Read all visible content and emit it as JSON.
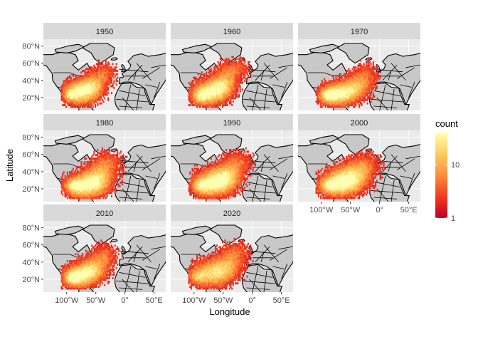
{
  "chart_data": {
    "type": "heatmap",
    "facets": [
      "1950",
      "1960",
      "1970",
      "1980",
      "1990",
      "2000",
      "2010",
      "2020"
    ],
    "xlabel": "Longitude",
    "ylabel": "Latitude",
    "x_ticks": [
      {
        "value": -100,
        "label": "100°W"
      },
      {
        "value": -50,
        "label": "50°W"
      },
      {
        "value": 0,
        "label": "0°"
      },
      {
        "value": 50,
        "label": "50°E"
      }
    ],
    "y_ticks": [
      {
        "value": 20,
        "label": "20°N"
      },
      {
        "value": 40,
        "label": "40°N"
      },
      {
        "value": 60,
        "label": "60°N"
      },
      {
        "value": 80,
        "label": "80°N"
      }
    ],
    "xlim": [
      -140,
      70
    ],
    "ylim": [
      5,
      88
    ],
    "legend": {
      "title": "count",
      "scale": "log",
      "breaks": [
        {
          "value": 1,
          "label": "1"
        },
        {
          "value": 10,
          "label": "10"
        }
      ],
      "range": [
        1,
        40
      ],
      "colors": [
        "#bd0026",
        "#f03b20",
        "#fd8d3c",
        "#fecc5c",
        "#ffffb2"
      ],
      "position": "right"
    },
    "grid": true,
    "panel_background": "#ebebeb",
    "strip_background": "#d9d9d9",
    "land_color": "#c8c8c8"
  }
}
